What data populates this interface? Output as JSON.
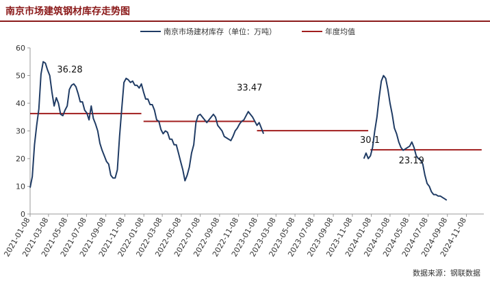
{
  "header": {
    "title": "南京市场建筑钢材库存走势图"
  },
  "footer": {
    "source": "数据来源：钢联数据"
  },
  "colors": {
    "inventory": "#1f3b64",
    "average": "#a11d1d",
    "title": "#8b1a1a"
  },
  "chart_data": {
    "type": "line",
    "title": "南京市场建筑钢材库存走势图",
    "ylim": [
      0,
      60
    ],
    "yticks": [
      0,
      10,
      20,
      30,
      40,
      50,
      60
    ],
    "grid": false,
    "legend_position": "top",
    "x_tick_labels": [
      "2021-01-08",
      "2021-03-08",
      "2021-05-08",
      "2021-07-08",
      "2021-09-08",
      "2021-11-08",
      "2022-01-08",
      "2022-03-08",
      "2022-05-08",
      "2022-07-08",
      "2022-09-08",
      "2022-11-08",
      "2023-01-08",
      "2023-03-08",
      "2023-05-08",
      "2023-07-08",
      "2023-09-08",
      "2023-11-08",
      "2024-01-08",
      "2024-03-08",
      "2024-05-08",
      "2024-07-08",
      "2024-09-08",
      "2024-11-08"
    ],
    "x_range": [
      "2021-01-08",
      "2025-01-03"
    ],
    "series": [
      {
        "name": "南京市场建材库存（单位：万吨）",
        "segments": [
          [
            [
              "2021-01-08",
              9.5
            ],
            [
              "2021-01-15",
              13.5
            ],
            [
              "2021-01-22",
              25
            ],
            [
              "2021-01-29",
              32
            ],
            [
              "2021-02-05",
              38
            ],
            [
              "2021-02-12",
              50.5
            ],
            [
              "2021-02-19",
              55
            ],
            [
              "2021-02-26",
              54.5
            ],
            [
              "2021-03-05",
              52
            ],
            [
              "2021-03-12",
              50
            ],
            [
              "2021-03-19",
              44
            ],
            [
              "2021-03-26",
              39
            ],
            [
              "2021-04-02",
              42
            ],
            [
              "2021-04-09",
              40
            ],
            [
              "2021-04-16",
              36
            ],
            [
              "2021-04-23",
              35.5
            ],
            [
              "2021-04-30",
              37.5
            ],
            [
              "2021-05-07",
              39
            ],
            [
              "2021-05-14",
              45
            ],
            [
              "2021-05-21",
              46.5
            ],
            [
              "2021-05-28",
              47
            ],
            [
              "2021-06-04",
              46
            ],
            [
              "2021-06-11",
              43.5
            ],
            [
              "2021-06-18",
              40.5
            ],
            [
              "2021-06-25",
              40.5
            ],
            [
              "2021-07-02",
              37.5
            ],
            [
              "2021-07-09",
              36.5
            ],
            [
              "2021-07-16",
              34
            ],
            [
              "2021-07-23",
              39
            ],
            [
              "2021-07-30",
              34.5
            ],
            [
              "2021-08-06",
              32.5
            ],
            [
              "2021-08-13",
              30
            ],
            [
              "2021-08-20",
              25.5
            ],
            [
              "2021-08-27",
              23
            ],
            [
              "2021-09-03",
              21
            ],
            [
              "2021-09-10",
              19
            ],
            [
              "2021-09-17",
              18
            ],
            [
              "2021-09-24",
              14
            ],
            [
              "2021-10-01",
              13
            ],
            [
              "2021-10-08",
              13
            ],
            [
              "2021-10-15",
              16
            ],
            [
              "2021-10-22",
              28
            ],
            [
              "2021-10-29",
              38
            ],
            [
              "2021-11-05",
              47.5
            ],
            [
              "2021-11-12",
              49
            ],
            [
              "2021-11-19",
              48.5
            ],
            [
              "2021-11-26",
              47.5
            ],
            [
              "2021-12-03",
              48
            ],
            [
              "2021-12-10",
              46.5
            ],
            [
              "2021-12-17",
              46.5
            ],
            [
              "2021-12-24",
              45.5
            ],
            [
              "2021-12-31",
              47
            ],
            [
              "2022-01-07",
              44
            ],
            [
              "2022-01-14",
              41.5
            ],
            [
              "2022-01-21",
              41.5
            ],
            [
              "2022-01-28",
              39.5
            ],
            [
              "2022-02-04",
              39.5
            ],
            [
              "2022-02-11",
              37.5
            ],
            [
              "2022-02-18",
              34
            ],
            [
              "2022-02-25",
              33.5
            ],
            [
              "2022-03-04",
              30.5
            ],
            [
              "2022-03-11",
              29
            ],
            [
              "2022-03-18",
              30
            ],
            [
              "2022-03-25",
              29.5
            ],
            [
              "2022-04-01",
              27
            ],
            [
              "2022-04-08",
              27
            ],
            [
              "2022-04-15",
              25
            ],
            [
              "2022-04-22",
              25
            ],
            [
              "2022-04-29",
              22
            ],
            [
              "2022-05-06",
              19
            ],
            [
              "2022-05-13",
              16
            ],
            [
              "2022-05-20",
              12
            ],
            [
              "2022-05-27",
              14
            ],
            [
              "2022-06-03",
              17
            ],
            [
              "2022-06-10",
              22
            ],
            [
              "2022-06-17",
              25
            ],
            [
              "2022-06-24",
              33
            ],
            [
              "2022-07-01",
              35.5
            ],
            [
              "2022-07-08",
              36
            ],
            [
              "2022-07-15",
              35
            ],
            [
              "2022-07-22",
              34
            ],
            [
              "2022-07-29",
              33
            ],
            [
              "2022-08-05",
              34
            ],
            [
              "2022-08-12",
              35
            ],
            [
              "2022-08-19",
              36
            ],
            [
              "2022-08-26",
              35
            ],
            [
              "2022-09-02",
              32
            ],
            [
              "2022-09-09",
              31
            ],
            [
              "2022-09-16",
              30
            ],
            [
              "2022-09-23",
              28
            ],
            [
              "2022-09-30",
              27.5
            ],
            [
              "2022-10-07",
              27
            ],
            [
              "2022-10-14",
              26.5
            ],
            [
              "2022-10-21",
              28
            ],
            [
              "2022-10-28",
              30
            ],
            [
              "2022-11-04",
              31
            ],
            [
              "2022-11-11",
              32.5
            ],
            [
              "2022-11-18",
              33.5
            ],
            [
              "2022-11-25",
              34
            ],
            [
              "2022-12-02",
              35.5
            ],
            [
              "2022-12-09",
              37
            ],
            [
              "2022-12-16",
              36
            ],
            [
              "2022-12-23",
              35
            ],
            [
              "2022-12-30",
              33.5
            ],
            [
              "2023-01-06",
              32
            ],
            [
              "2023-01-13",
              33
            ],
            [
              "2023-01-20",
              31
            ],
            [
              "2023-01-27",
              29
            ]
          ],
          [
            [
              "2023-12-15",
              20
            ],
            [
              "2023-12-22",
              22
            ],
            [
              "2023-12-29",
              20
            ],
            [
              "2024-01-05",
              21
            ],
            [
              "2024-01-12",
              24
            ],
            [
              "2024-01-19",
              30
            ],
            [
              "2024-01-26",
              35
            ],
            [
              "2024-02-02",
              42
            ],
            [
              "2024-02-09",
              48
            ],
            [
              "2024-02-16",
              50
            ],
            [
              "2024-02-23",
              49
            ],
            [
              "2024-03-01",
              45
            ],
            [
              "2024-03-08",
              40
            ],
            [
              "2024-03-15",
              36
            ],
            [
              "2024-03-22",
              31
            ],
            [
              "2024-03-29",
              29
            ],
            [
              "2024-04-05",
              26
            ],
            [
              "2024-04-12",
              24
            ],
            [
              "2024-04-19",
              23
            ],
            [
              "2024-04-26",
              23.5
            ],
            [
              "2024-05-03",
              24
            ],
            [
              "2024-05-10",
              24.5
            ],
            [
              "2024-05-17",
              26
            ],
            [
              "2024-05-24",
              24
            ],
            [
              "2024-05-31",
              21
            ],
            [
              "2024-06-07",
              20
            ],
            [
              "2024-06-14",
              19.5
            ],
            [
              "2024-06-21",
              18
            ],
            [
              "2024-06-28",
              14
            ],
            [
              "2024-07-05",
              11
            ],
            [
              "2024-07-12",
              10
            ],
            [
              "2024-07-19",
              8
            ],
            [
              "2024-07-26",
              7
            ],
            [
              "2024-08-02",
              7
            ],
            [
              "2024-08-09",
              6.5
            ],
            [
              "2024-08-16",
              6.5
            ],
            [
              "2024-08-23",
              6
            ],
            [
              "2024-08-30",
              5.5
            ],
            [
              "2024-09-06",
              5
            ]
          ]
        ]
      },
      {
        "name": "年度均值",
        "values": [
          {
            "year": "2021",
            "value": 36.28,
            "label": "36.28"
          },
          {
            "year": "2022",
            "value": 33.47,
            "label": "33.47"
          },
          {
            "year": "2023",
            "value": 30.1,
            "label": "30.1"
          },
          {
            "year": "2024",
            "value": 23.19,
            "label": "23.19"
          }
        ]
      }
    ]
  }
}
